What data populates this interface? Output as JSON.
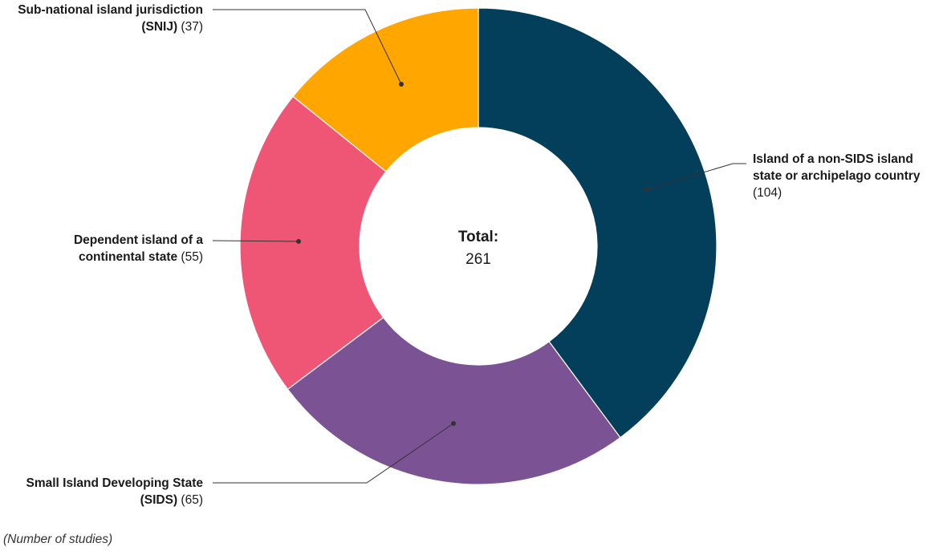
{
  "chart_data": {
    "type": "pie",
    "variant": "donut",
    "slices": [
      {
        "id": "non-sids",
        "lines": [
          "Island of a non-SIDS island",
          "state or archipelago country"
        ],
        "count_label": "(104)",
        "value": 104,
        "color": "#033e5a"
      },
      {
        "id": "sids",
        "lines": [
          "Small Island Developing State",
          "(SIDS)"
        ],
        "count_label": "(65)",
        "value": 65,
        "color": "#7b5294"
      },
      {
        "id": "dependent",
        "lines": [
          "Dependent island of a",
          "continental state"
        ],
        "count_label": "(55)",
        "value": 55,
        "color": "#ef5675"
      },
      {
        "id": "snij",
        "lines": [
          "Sub-national island jurisdiction",
          "(SNIJ)"
        ],
        "count_label": "(37)",
        "value": 37,
        "color": "#ffa600"
      }
    ],
    "center_title": "Total:",
    "center_value": "261",
    "note": "(Number of studies)"
  }
}
